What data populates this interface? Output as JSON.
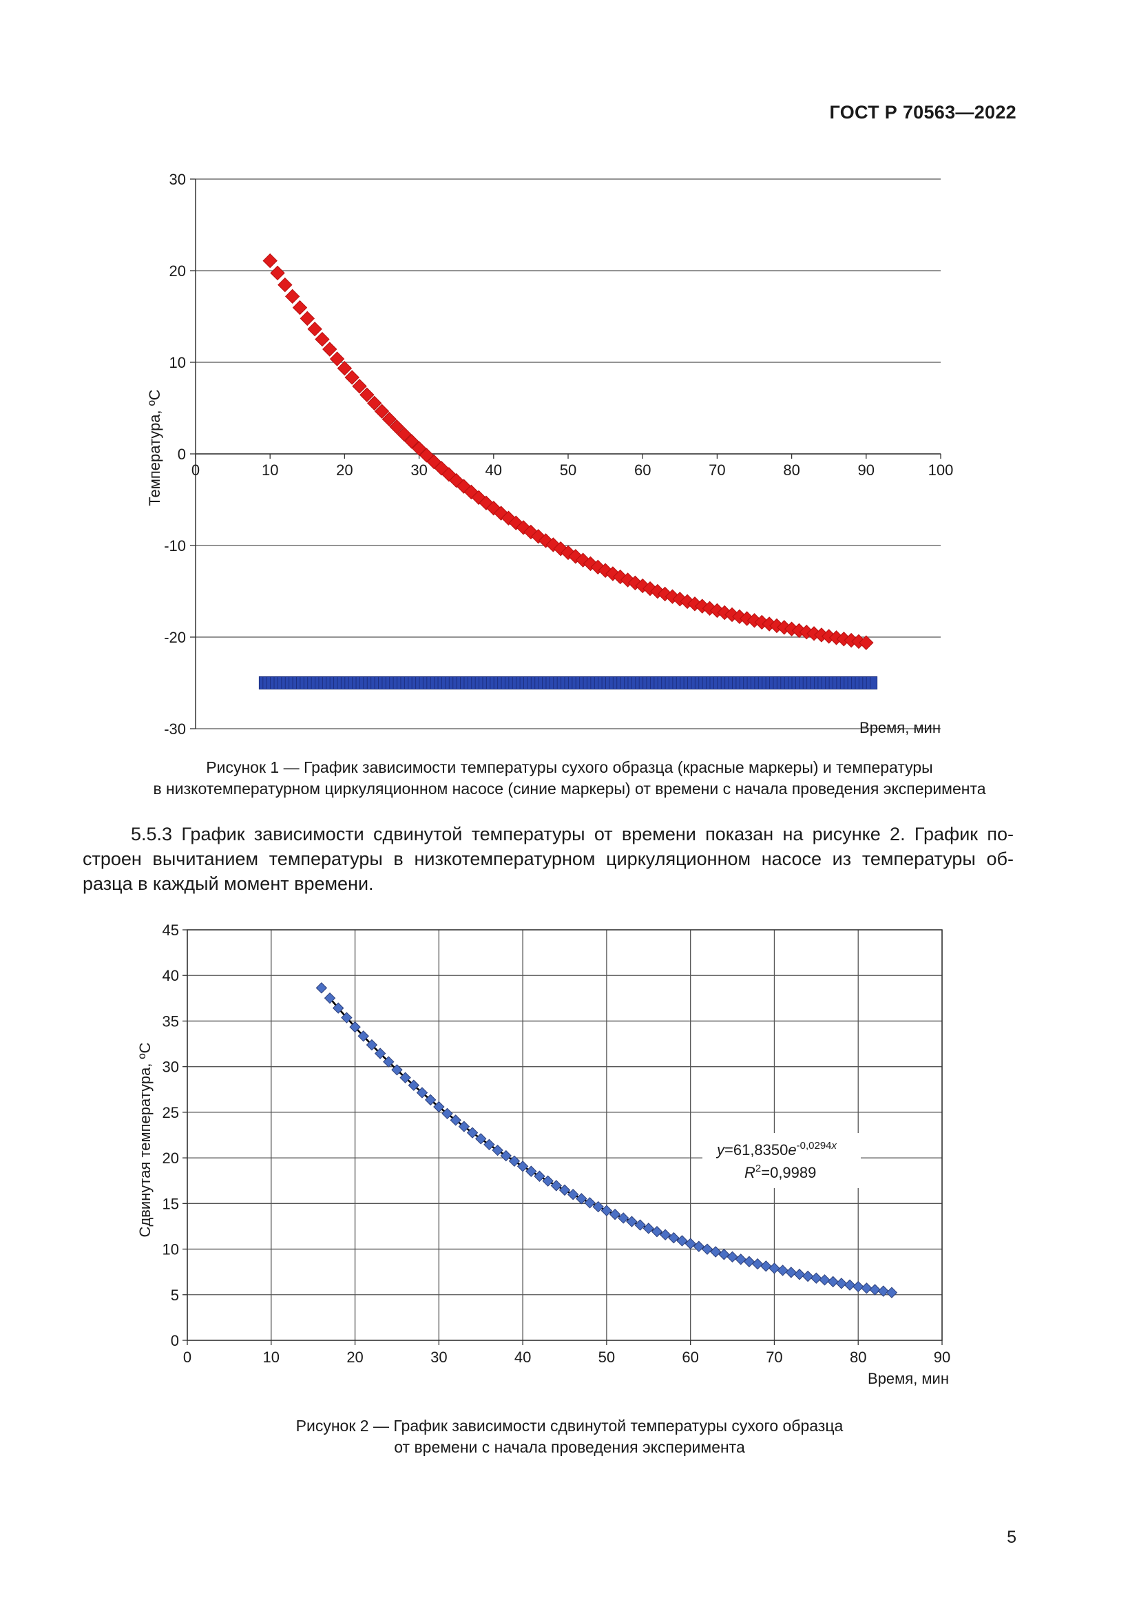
{
  "header": {
    "doc_id": "ГОСТ Р 70563—2022"
  },
  "figure1": {
    "caption_line1": "Рисунок 1 — График зависимости температуры сухого образца (красные маркеры) и температуры",
    "caption_line2": "в низкотемпературном циркуляционном насосе (синие маркеры) от времени с начала проведения эксперимента"
  },
  "paragraph": {
    "line1": "5.5.3 График зависимости сдвинутой температуры от времени показан на рисунке 2. График по-",
    "line2": "строен вычитанием температуры в низкотемпературном циркуляционном насосе из температуры об-",
    "line3": "разца в каждый момент времени."
  },
  "figure2": {
    "caption_line1": "Рисунок 2 — График зависимости сдвинутой температуры сухого образца",
    "caption_line2": "от времени с начала проведения эксперимента"
  },
  "page_number": "5",
  "chart_data": [
    {
      "type": "scatter",
      "title": "",
      "xlabel": "Время, мин",
      "ylabel": "Температура, ºС",
      "xlim": [
        0,
        100
      ],
      "ylim": [
        -30,
        30
      ],
      "xticks": [
        "0",
        "10",
        "20",
        "30",
        "40",
        "50",
        "60",
        "70",
        "80",
        "90",
        "100"
      ],
      "yticks": [
        "30",
        "20",
        "10",
        "0",
        "-10",
        "-20",
        "-30"
      ],
      "grid": "horizontal",
      "series": [
        {
          "name": "Температура сухого образца",
          "color": "#e01b1b",
          "marker": "diamond",
          "model": {
            "form": "y = A*exp(-k*x) + c",
            "A": 61.835,
            "k": 0.0294,
            "c": -25.0,
            "x_from": 10,
            "x_to": 90,
            "step": 1
          }
        },
        {
          "name": "Температура в низкотемпературном циркуляционном насосе",
          "color": "#2a48b0",
          "marker": "diamond",
          "model": {
            "form": "constant",
            "value": -25.0,
            "x_from": 9,
            "x_to": 91,
            "step": 0.5
          }
        }
      ]
    },
    {
      "type": "scatter",
      "title": "",
      "xlabel": "Время, мин",
      "ylabel": "Сдвинутая температура, ºС",
      "xlim": [
        0,
        90
      ],
      "ylim": [
        0,
        45
      ],
      "xticks": [
        "0",
        "10",
        "20",
        "30",
        "40",
        "50",
        "60",
        "70",
        "80",
        "90"
      ],
      "yticks": [
        "45",
        "40",
        "35",
        "30",
        "25",
        "20",
        "15",
        "10",
        "5",
        "0"
      ],
      "grid": "both",
      "series": [
        {
          "name": "Сдвинутая температура",
          "color": "#4a6fc4",
          "marker": "diamond",
          "model": {
            "form": "y = A*exp(-k*x)",
            "A": 61.835,
            "k": 0.0294,
            "x_from": 16,
            "x_to": 84,
            "step": 1
          }
        }
      ],
      "trendline": {
        "type": "exponential",
        "A": 61.835,
        "k": 0.0294,
        "x_from": 17,
        "x_to": 83,
        "color": "#000000",
        "label_prefix": "y",
        "label_eq": "=61,8350",
        "label_e": "e",
        "label_exp": "-0,0294",
        "label_x": "x",
        "label_r2_r": "R",
        "label_r2_sup": "2",
        "label_r2_val": "=0,9989"
      }
    }
  ]
}
